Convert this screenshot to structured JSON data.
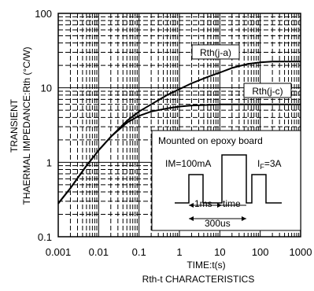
{
  "chart_data": {
    "type": "line",
    "xscale": "log",
    "yscale": "log",
    "xlim": [
      0.001,
      1000
    ],
    "ylim": [
      0.1,
      100
    ],
    "grid": true,
    "x_ticks": [
      "0.001",
      "0.01",
      "0.1",
      "1",
      "10",
      "100",
      "1000"
    ],
    "y_ticks": [
      "0.1",
      "1",
      "10",
      "100"
    ],
    "xlabel": "TIME:t(s)",
    "ylabel_line1": "TRANSIENT",
    "ylabel_line2": "THAERMAL IMPEDANCE:Rth (°C/W)",
    "caption": "Rth-t CHARACTERISTICS",
    "series": [
      {
        "name": "Rth(j-a)",
        "x": [
          0.001,
          0.002,
          0.005,
          0.01,
          0.02,
          0.05,
          0.1,
          0.2,
          0.5,
          1,
          2,
          5,
          10,
          20,
          50,
          100,
          200,
          1000
        ],
        "y": [
          0.28,
          0.45,
          0.9,
          1.45,
          2.2,
          3.6,
          4.8,
          6.0,
          8.0,
          9.6,
          11.5,
          14.0,
          16.0,
          18.5,
          21.0,
          22.0,
          22.5,
          22.5
        ]
      },
      {
        "name": "Rth(j-c)",
        "x": [
          0.001,
          0.002,
          0.005,
          0.01,
          0.02,
          0.05,
          0.1,
          0.2,
          0.5,
          1,
          2,
          5,
          10,
          100,
          1000
        ],
        "y": [
          0.28,
          0.45,
          0.9,
          1.45,
          2.2,
          3.4,
          4.2,
          4.8,
          5.3,
          5.6,
          5.8,
          5.9,
          6.0,
          6.0,
          6.0
        ]
      }
    ],
    "inset": {
      "title": "Mounted on epoxy board",
      "im_label": "IM=100mA",
      "if_label_main": "I",
      "if_label_sub": "F",
      "if_label_value": "=3A",
      "label_1ms": "1ms",
      "label_time": "time",
      "label_300us": "300us"
    }
  }
}
